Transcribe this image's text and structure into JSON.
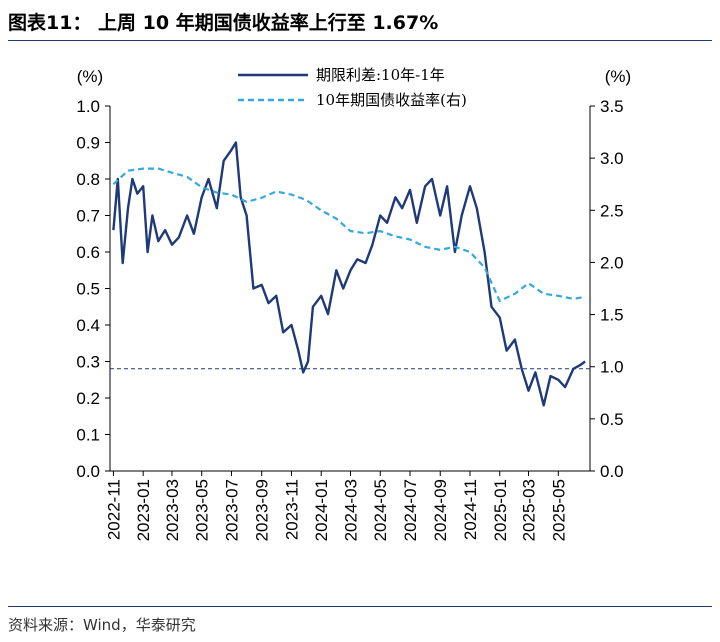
{
  "header": {
    "title": "图表11：  上周 10 年期国债收益率上行至 1.67%"
  },
  "footer": {
    "source": "资料来源：Wind，华泰研究"
  },
  "chart_data": {
    "type": "line",
    "left_unit": "(%)",
    "right_unit": "(%)",
    "ylim_left": [
      0.0,
      1.0
    ],
    "ylim_right": [
      0.0,
      3.5
    ],
    "yticks_left": [
      "0.0",
      "0.1",
      "0.2",
      "0.3",
      "0.4",
      "0.5",
      "0.6",
      "0.7",
      "0.8",
      "0.9",
      "1.0"
    ],
    "yticks_right": [
      "0.0",
      "0.5",
      "1.0",
      "1.5",
      "2.0",
      "2.5",
      "3.0",
      "3.5"
    ],
    "xticks": [
      "2022-11",
      "2023-01",
      "2023-03",
      "2023-05",
      "2023-07",
      "2023-09",
      "2023-11",
      "2024-01",
      "2024-03",
      "2024-05",
      "2024-07",
      "2024-09",
      "2024-11",
      "2025-01",
      "2025-03",
      "2025-05"
    ],
    "reference_line": {
      "axis": "left",
      "value": 0.28
    },
    "grid": false,
    "legend_position": "top-center",
    "series": [
      {
        "name": "期限利差:10年-1年",
        "axis": "left",
        "color": "#1f3a78",
        "style": "solid",
        "x": [
          "2022-11-01",
          "2022-11-10",
          "2022-11-20",
          "2022-12-01",
          "2022-12-10",
          "2022-12-20",
          "2023-01-01",
          "2023-01-10",
          "2023-01-20",
          "2023-02-01",
          "2023-02-15",
          "2023-03-01",
          "2023-03-15",
          "2023-04-01",
          "2023-04-15",
          "2023-05-01",
          "2023-05-15",
          "2023-06-01",
          "2023-06-15",
          "2023-07-01",
          "2023-07-10",
          "2023-07-20",
          "2023-08-01",
          "2023-08-15",
          "2023-09-01",
          "2023-09-15",
          "2023-10-01",
          "2023-10-15",
          "2023-11-01",
          "2023-11-15",
          "2023-11-25",
          "2023-12-05",
          "2023-12-15",
          "2024-01-01",
          "2024-01-15",
          "2024-02-01",
          "2024-02-15",
          "2024-03-01",
          "2024-03-15",
          "2024-04-01",
          "2024-04-15",
          "2024-05-01",
          "2024-05-15",
          "2024-06-01",
          "2024-06-15",
          "2024-07-01",
          "2024-07-15",
          "2024-08-01",
          "2024-08-15",
          "2024-09-01",
          "2024-09-15",
          "2024-10-01",
          "2024-10-15",
          "2024-11-01",
          "2024-11-15",
          "2024-12-01",
          "2024-12-15",
          "2025-01-01",
          "2025-01-15",
          "2025-02-01",
          "2025-02-15",
          "2025-03-01",
          "2025-03-15",
          "2025-04-01",
          "2025-04-15",
          "2025-05-01",
          "2025-05-15",
          "2025-06-01",
          "2025-06-15",
          "2025-06-25"
        ],
        "y": [
          0.66,
          0.8,
          0.57,
          0.72,
          0.8,
          0.76,
          0.78,
          0.6,
          0.7,
          0.63,
          0.66,
          0.62,
          0.64,
          0.7,
          0.65,
          0.75,
          0.8,
          0.72,
          0.85,
          0.88,
          0.9,
          0.75,
          0.7,
          0.5,
          0.51,
          0.46,
          0.48,
          0.38,
          0.4,
          0.33,
          0.27,
          0.3,
          0.45,
          0.48,
          0.43,
          0.55,
          0.5,
          0.55,
          0.58,
          0.57,
          0.62,
          0.7,
          0.68,
          0.75,
          0.72,
          0.77,
          0.68,
          0.78,
          0.8,
          0.7,
          0.78,
          0.6,
          0.7,
          0.78,
          0.72,
          0.6,
          0.45,
          0.42,
          0.33,
          0.36,
          0.28,
          0.22,
          0.27,
          0.18,
          0.26,
          0.25,
          0.23,
          0.28,
          0.29,
          0.3
        ]
      },
      {
        "name": "10年期国债收益率(右)",
        "axis": "right",
        "color": "#35a9dc",
        "style": "dashed",
        "x": [
          "2022-11-01",
          "2022-12-01",
          "2023-01-01",
          "2023-02-01",
          "2023-03-01",
          "2023-04-01",
          "2023-05-01",
          "2023-06-01",
          "2023-07-01",
          "2023-08-01",
          "2023-09-01",
          "2023-10-01",
          "2023-11-01",
          "2023-12-01",
          "2024-01-01",
          "2024-02-01",
          "2024-03-01",
          "2024-04-01",
          "2024-05-01",
          "2024-06-01",
          "2024-07-01",
          "2024-08-01",
          "2024-09-01",
          "2024-10-01",
          "2024-11-01",
          "2024-12-01",
          "2025-01-01",
          "2025-02-01",
          "2025-03-01",
          "2025-04-01",
          "2025-05-01",
          "2025-06-01",
          "2025-06-25"
        ],
        "y": [
          2.75,
          2.88,
          2.9,
          2.9,
          2.86,
          2.82,
          2.72,
          2.67,
          2.65,
          2.58,
          2.62,
          2.68,
          2.65,
          2.6,
          2.5,
          2.42,
          2.3,
          2.28,
          2.3,
          2.25,
          2.22,
          2.15,
          2.12,
          2.15,
          2.1,
          1.95,
          1.63,
          1.7,
          1.8,
          1.7,
          1.68,
          1.65,
          1.67
        ]
      }
    ]
  }
}
